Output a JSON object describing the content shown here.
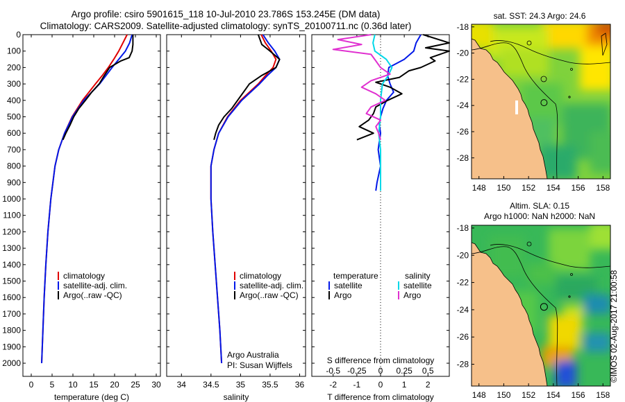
{
  "header": {
    "line1": "Argo profile: csiro 5901615_118 10-Jul-2010 23.786S 153.245E (DM data)",
    "line2": "Climatology: CARS2009. Satellite-adjusted climatology: synTS_20100711.nc (0.36d later)"
  },
  "colors": {
    "climatology": "#e00000",
    "satellite": "#0018e8",
    "argo": "#000000",
    "salinity_satellite": "#00d8e8",
    "salinity_argo": "#e030d0",
    "land": "#f6c08a"
  },
  "chart_data": [
    {
      "type": "line",
      "name": "temperature-profile",
      "xlabel": "temperature (deg C)",
      "ylabel": "",
      "xlim": [
        -2,
        31
      ],
      "ylim": [
        2080,
        0
      ],
      "xticks": [
        "0",
        "5",
        "10",
        "15",
        "20",
        "25",
        "30"
      ],
      "yticks": [
        "0",
        "100",
        "200",
        "300",
        "400",
        "500",
        "600",
        "700",
        "800",
        "900",
        "1000",
        "1100",
        "1200",
        "1300",
        "1400",
        "1500",
        "1600",
        "1700",
        "1800",
        "1900",
        "2000"
      ],
      "legend": [
        "climatology",
        "satellite-adj. clim.",
        "Argo(..raw -QC)"
      ],
      "series": [
        {
          "name": "climatology",
          "depth": [
            0,
            50,
            100,
            150,
            200,
            250,
            300,
            400,
            500,
            600,
            700,
            800,
            1000,
            1200,
            1400,
            1600,
            1800,
            2000
          ],
          "values": [
            23.0,
            22.0,
            21.0,
            19.8,
            18.5,
            17.0,
            15.4,
            12.3,
            9.8,
            8.0,
            6.6,
            5.7,
            4.7,
            4.0,
            3.5,
            3.1,
            2.8,
            2.5
          ]
        },
        {
          "name": "satellite-adj. clim.",
          "depth": [
            0,
            50,
            100,
            150,
            200,
            250,
            300,
            400,
            500,
            600,
            700,
            800,
            1000,
            1200,
            1400,
            1600,
            1800,
            2000
          ],
          "values": [
            24.2,
            23.6,
            22.6,
            21.0,
            19.4,
            17.9,
            16.4,
            12.6,
            9.9,
            8.0,
            6.6,
            5.7,
            4.7,
            4.0,
            3.5,
            3.1,
            2.8,
            2.5
          ]
        },
        {
          "name": "Argo(..raw -QC)",
          "depth": [
            0,
            60,
            100,
            140,
            160,
            200,
            250,
            300,
            350,
            400,
            450,
            500,
            550,
            600,
            640
          ],
          "values": [
            24.4,
            24.4,
            24.2,
            23.5,
            21.5,
            18.8,
            17.5,
            16.3,
            14.5,
            13.0,
            11.4,
            10.2,
            9.3,
            8.3,
            7.6
          ]
        }
      ]
    },
    {
      "type": "line",
      "name": "salinity-profile",
      "xlabel": "salinity",
      "xlim": [
        33.75,
        36.1
      ],
      "ylim": [
        2080,
        0
      ],
      "xticks": [
        "34",
        "34.5",
        "35",
        "35.5",
        "36"
      ],
      "legend": [
        "climatology",
        "satellite-adj. clim.",
        "Argo(..raw -QC)"
      ],
      "series": [
        {
          "name": "climatology",
          "depth": [
            0,
            50,
            100,
            150,
            200,
            250,
            300,
            400,
            500,
            600,
            700,
            800,
            1000,
            1200,
            1400,
            1600,
            1800,
            2000
          ],
          "values": [
            35.35,
            35.42,
            35.52,
            35.6,
            35.55,
            35.42,
            35.3,
            35.0,
            34.78,
            34.63,
            34.55,
            34.5,
            34.5,
            34.53,
            34.57,
            34.61,
            34.65,
            34.68
          ]
        },
        {
          "name": "satellite-adj. clim.",
          "depth": [
            0,
            50,
            100,
            150,
            200,
            250,
            300,
            400,
            500,
            600,
            700,
            800,
            1000,
            1200,
            1400,
            1600,
            1800,
            2000
          ],
          "values": [
            35.38,
            35.47,
            35.58,
            35.66,
            35.6,
            35.45,
            35.32,
            35.02,
            34.79,
            34.63,
            34.55,
            34.5,
            34.5,
            34.53,
            34.57,
            34.61,
            34.65,
            34.68
          ]
        },
        {
          "name": "Argo(..raw -QC)",
          "depth": [
            0,
            60,
            100,
            150,
            200,
            250,
            300,
            350,
            400,
            450,
            500,
            550,
            600,
            640
          ],
          "values": [
            35.3,
            35.36,
            35.5,
            35.66,
            35.6,
            35.35,
            35.15,
            35.05,
            34.95,
            34.85,
            34.72,
            34.63,
            34.58,
            34.55
          ]
        }
      ]
    },
    {
      "type": "line",
      "name": "difference-profile",
      "xlabel": "S difference from climatology",
      "xlabel2": "T difference from climatology",
      "xlim": [
        -2.9,
        2.9
      ],
      "ylim": [
        2080,
        0
      ],
      "xticks_T": [
        "-2",
        "-1",
        "0",
        "1",
        "2"
      ],
      "xticks_S": [
        "-0.5",
        "-0.25",
        "0",
        "0.25",
        "0.5"
      ],
      "legend_temperature_title": "temperature",
      "legend_salinity_title": "salinity",
      "legend_temperature": [
        "satellite",
        "Argo"
      ],
      "legend_salinity": [
        "satellite",
        "Argo"
      ],
      "series": [
        {
          "name": "temperature satellite",
          "depth": [
            0,
            50,
            100,
            150,
            200,
            250,
            300,
            350,
            400,
            450,
            500,
            550,
            600,
            700,
            800,
            900,
            950
          ],
          "values": [
            1.7,
            1.5,
            1.4,
            1.0,
            0.35,
            0.3,
            0.4,
            0.55,
            0.25,
            0.1,
            0.0,
            -0.05,
            0.0,
            -0.1,
            0.0,
            -0.15,
            -0.2
          ]
        },
        {
          "name": "temperature Argo",
          "depth": [
            0,
            50,
            80,
            100,
            140,
            160,
            200,
            220,
            260,
            290,
            320,
            360,
            400,
            440,
            480,
            520,
            560,
            600,
            640
          ],
          "values": [
            1.8,
            2.9,
            1.9,
            2.9,
            2.1,
            2.3,
            1.7,
            1.2,
            0.8,
            -0.2,
            0.4,
            0.9,
            0.3,
            -0.2,
            -0.3,
            -0.5,
            -0.9,
            -0.3,
            -1.0
          ]
        },
        {
          "name": "salinity satellite",
          "depth": [
            0,
            50,
            100,
            150,
            200,
            250,
            300,
            400,
            500,
            600,
            700,
            800,
            900,
            950
          ],
          "values": [
            -0.06,
            -0.08,
            -0.06,
            0.06,
            0.12,
            0.08,
            0.02,
            0.0,
            0.0,
            -0.02,
            0.0,
            0.0,
            0.0,
            0.0
          ]
        },
        {
          "name": "salinity Argo",
          "depth": [
            0,
            30,
            60,
            90,
            120,
            160,
            200,
            240,
            280,
            320,
            360,
            400,
            440,
            480,
            520,
            560,
            600,
            640
          ],
          "values": [
            -0.1,
            -0.45,
            -0.2,
            -0.5,
            -0.1,
            -0.05,
            0.0,
            0.1,
            -0.1,
            -0.2,
            -0.05,
            0.05,
            -0.1,
            -0.15,
            0.0,
            -0.05,
            -0.02,
            0.0
          ]
        }
      ]
    },
    {
      "type": "heatmap",
      "name": "sst-map",
      "title": "sat. SST: 24.3 Argo: 24.6",
      "xlim": [
        147.4,
        158.6
      ],
      "ylim": [
        -29.6,
        -17.8
      ],
      "xticks": [
        "148",
        "150",
        "152",
        "154",
        "156",
        "158"
      ],
      "yticks": [
        "-18",
        "-20",
        "-22",
        "-24",
        "-26",
        "-28"
      ],
      "argo_position": [
        153.245,
        -23.786
      ]
    },
    {
      "type": "heatmap",
      "name": "sla-map",
      "title_line1": "Altim. SLA: 0.15",
      "title_line2": "Argo h1000: NaN h2000: NaN",
      "xlim": [
        147.4,
        158.6
      ],
      "ylim": [
        -29.6,
        -17.8
      ],
      "xticks": [
        "148",
        "150",
        "152",
        "154",
        "156",
        "158"
      ],
      "yticks": [
        "-18",
        "-20",
        "-22",
        "-24",
        "-26",
        "-28"
      ],
      "argo_position": [
        153.245,
        -23.786
      ]
    }
  ],
  "panel_notes": {
    "institution": "Argo Australia",
    "pi": "PI: Susan Wijffels"
  },
  "credit": "©IMOS 02-Aug-2017 21:00:58"
}
